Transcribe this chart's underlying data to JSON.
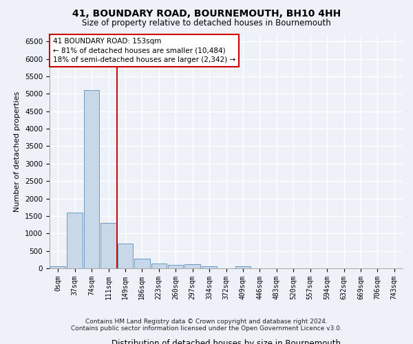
{
  "title": "41, BOUNDARY ROAD, BOURNEMOUTH, BH10 4HH",
  "subtitle": "Size of property relative to detached houses in Bournemouth",
  "xlabel": "Distribution of detached houses by size in Bournemouth",
  "ylabel": "Number of detached properties",
  "footer_line1": "Contains HM Land Registry data © Crown copyright and database right 2024.",
  "footer_line2": "Contains public sector information licensed under the Open Government Licence v3.0.",
  "annotation_line1": "41 BOUNDARY ROAD: 153sqm",
  "annotation_line2": "← 81% of detached houses are smaller (10,484)",
  "annotation_line3": "18% of semi-detached houses are larger (2,342) →",
  "bar_color": "#c8d8e8",
  "bar_edge_color": "#5b8db8",
  "vline_color": "#cc0000",
  "vline_x_idx": 3.5,
  "categories": [
    "0sqm",
    "37sqm",
    "74sqm",
    "111sqm",
    "149sqm",
    "186sqm",
    "223sqm",
    "260sqm",
    "297sqm",
    "334sqm",
    "372sqm",
    "409sqm",
    "446sqm",
    "483sqm",
    "520sqm",
    "557sqm",
    "594sqm",
    "632sqm",
    "669sqm",
    "706sqm",
    "743sqm"
  ],
  "values": [
    55,
    1600,
    5100,
    1300,
    700,
    280,
    130,
    100,
    110,
    50,
    0,
    60,
    0,
    0,
    0,
    0,
    0,
    0,
    0,
    0,
    0
  ],
  "ylim": [
    0,
    6700
  ],
  "yticks": [
    0,
    500,
    1000,
    1500,
    2000,
    2500,
    3000,
    3500,
    4000,
    4500,
    5000,
    5500,
    6000,
    6500
  ],
  "background_color": "#eef2f8",
  "plot_bg_color": "#eef2f8",
  "grid_color": "#ffffff",
  "title_fontsize": 10,
  "subtitle_fontsize": 8.5,
  "ylabel_fontsize": 8,
  "xlabel_fontsize": 8.5,
  "tick_fontsize": 7.5,
  "xtick_fontsize": 7
}
